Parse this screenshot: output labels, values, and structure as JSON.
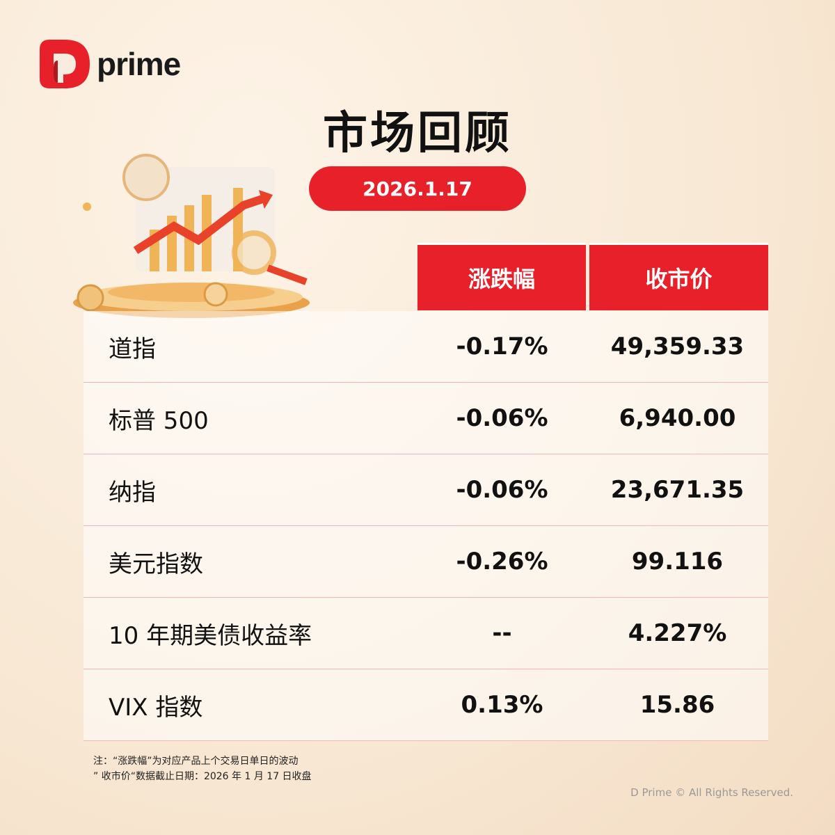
{
  "brand": {
    "name": "prime",
    "accent": "#e8202a"
  },
  "title": "市场回顾",
  "date": "2026.1.17",
  "table": {
    "headers": [
      "涨跌幅",
      "收市价"
    ],
    "rows": [
      {
        "name": "道指",
        "change": "-0.17%",
        "close": "49,359.33"
      },
      {
        "name": "标普 500",
        "change": "-0.06%",
        "close": "6,940.00"
      },
      {
        "name": "纳指",
        "change": "-0.06%",
        "close": "23,671.35"
      },
      {
        "name": "美元指数",
        "change": "-0.26%",
        "close": "99.116"
      },
      {
        "name": "10 年期美债收益率",
        "change": "--",
        "close": "4.227%"
      },
      {
        "name": "VIX 指数",
        "change": "0.13%",
        "close": "15.86"
      }
    ]
  },
  "notes": [
    "注：“涨跌幅”为对应产品上个交易日单日的波动",
    "” 收市价“数据截止日期：2026 年 1 月 17 日收盘"
  ],
  "copyright": "D Prime © All Rights Reserved."
}
